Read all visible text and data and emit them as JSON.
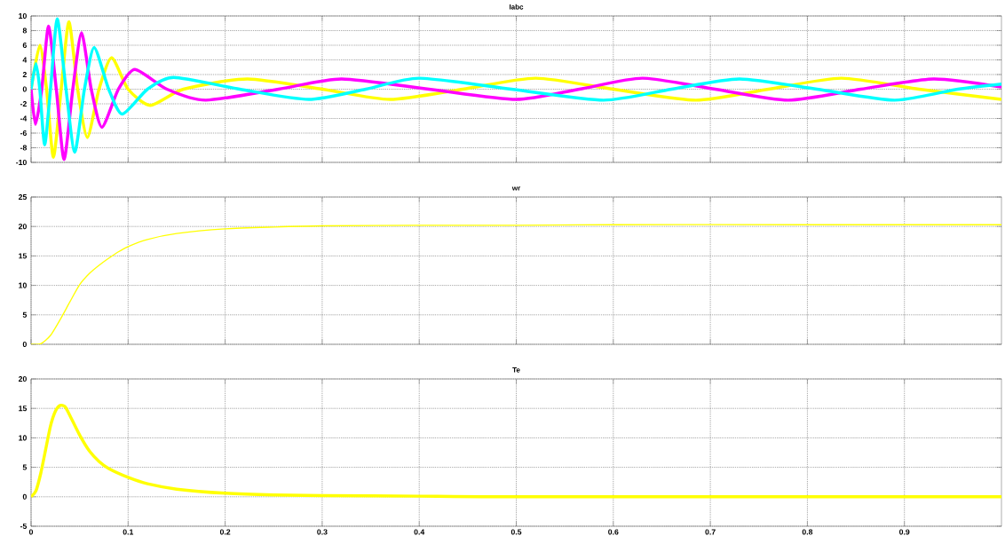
{
  "chart_data": [
    {
      "type": "line",
      "title": "Iabc",
      "xlim": [
        0,
        1
      ],
      "xticks": [
        0,
        0.1,
        0.2,
        0.3,
        0.4,
        0.5,
        0.6,
        0.7,
        0.8,
        0.9
      ],
      "ylim": [
        -10,
        10
      ],
      "yticks": [
        -10,
        -8,
        -6,
        -4,
        -2,
        0,
        2,
        4,
        6,
        8,
        10
      ],
      "grid": true,
      "tick_labels": "y",
      "series": [
        {
          "color": "#ffff00",
          "x": [
            0,
            0.009,
            0.016,
            0.023,
            0.031,
            0.039,
            0.048,
            0.058,
            0.07,
            0.083,
            0.1,
            0.123,
            0.157,
            0.223,
            0.3,
            0.37,
            0.445,
            0.52,
            0.6,
            0.685,
            0.76,
            0.835,
            0.915,
            1.0
          ],
          "values": [
            0,
            6,
            0,
            -9.3,
            0,
            9.2,
            0,
            -6.6,
            0,
            4.3,
            0,
            -2.2,
            0,
            1.4,
            0,
            -1.4,
            0,
            1.5,
            0,
            -1.5,
            0,
            1.5,
            0,
            -1.4
          ]
        },
        {
          "color": "#ff00ff",
          "x": [
            0,
            0.0045,
            0.011,
            0.018,
            0.026,
            0.034,
            0.043,
            0.052,
            0.062,
            0.073,
            0.09,
            0.107,
            0.14,
            0.18,
            0.255,
            0.32,
            0.41,
            0.5,
            0.565,
            0.63,
            0.705,
            0.78,
            0.855,
            0.93,
            1.0
          ],
          "values": [
            0,
            -4.8,
            0,
            8.6,
            0,
            -9.6,
            0,
            7.7,
            0,
            -5.2,
            0,
            2.7,
            0,
            -1.5,
            0,
            1.4,
            0,
            -1.4,
            0,
            1.5,
            0,
            -1.5,
            0,
            1.4,
            0.3
          ]
        },
        {
          "color": "#00ffff",
          "x": [
            0,
            0.005,
            0.009,
            0.014,
            0.02,
            0.027,
            0.036,
            0.045,
            0.055,
            0.065,
            0.08,
            0.094,
            0.12,
            0.147,
            0.215,
            0.286,
            0.345,
            0.4,
            0.495,
            0.59,
            0.66,
            0.73,
            0.81,
            0.89,
            0.955,
            1.0
          ],
          "values": [
            0,
            3.5,
            0,
            -7.6,
            0,
            9.6,
            0,
            -8.6,
            0,
            5.7,
            0,
            -3.4,
            0,
            1.6,
            0,
            -1.4,
            0,
            1.5,
            0,
            -1.5,
            0,
            1.4,
            0,
            -1.5,
            0,
            0.7
          ]
        }
      ]
    },
    {
      "type": "line",
      "title": "wr",
      "xlim": [
        0,
        1
      ],
      "xticks": [
        0,
        0.1,
        0.2,
        0.3,
        0.4,
        0.5,
        0.6,
        0.7,
        0.8,
        0.9
      ],
      "ylim": [
        0,
        25
      ],
      "yticks": [
        0,
        5,
        10,
        15,
        20,
        25
      ],
      "grid": true,
      "tick_labels": "y",
      "series": [
        {
          "color": "#ffff00",
          "x": [
            0,
            0.01,
            0.02,
            0.03,
            0.04,
            0.05,
            0.06,
            0.07,
            0.08,
            0.09,
            0.1,
            0.12,
            0.15,
            0.2,
            0.25,
            0.3,
            0.4,
            0.5,
            0.6,
            0.8,
            1.0
          ],
          "values": [
            0,
            0.1,
            1.5,
            4.2,
            7.2,
            10.1,
            12,
            13.4,
            14.6,
            15.7,
            16.6,
            17.8,
            18.8,
            19.6,
            19.9,
            20.1,
            20.2,
            20.2,
            20.3,
            20.3,
            20.3
          ]
        }
      ]
    },
    {
      "type": "line",
      "title": "Te",
      "xlim": [
        0,
        1
      ],
      "xticks": [
        0,
        0.1,
        0.2,
        0.3,
        0.4,
        0.5,
        0.6,
        0.7,
        0.8,
        0.9
      ],
      "ylim": [
        -5,
        20
      ],
      "yticks": [
        -5,
        0,
        5,
        10,
        15,
        20
      ],
      "grid": true,
      "series": [
        {
          "color": "#ffff00",
          "x": [
            0,
            0.005,
            0.01,
            0.015,
            0.02,
            0.025,
            0.03,
            0.035,
            0.04,
            0.05,
            0.06,
            0.07,
            0.08,
            0.1,
            0.12,
            0.15,
            0.2,
            0.25,
            0.3,
            0.4,
            0.5,
            1.0
          ],
          "values": [
            0,
            1,
            4,
            8,
            12,
            14.5,
            15.5,
            15.3,
            13.8,
            10.5,
            7.8,
            6,
            4.8,
            3.3,
            2.2,
            1.3,
            0.6,
            0.3,
            0.2,
            0.1,
            0,
            0
          ]
        }
      ]
    }
  ]
}
